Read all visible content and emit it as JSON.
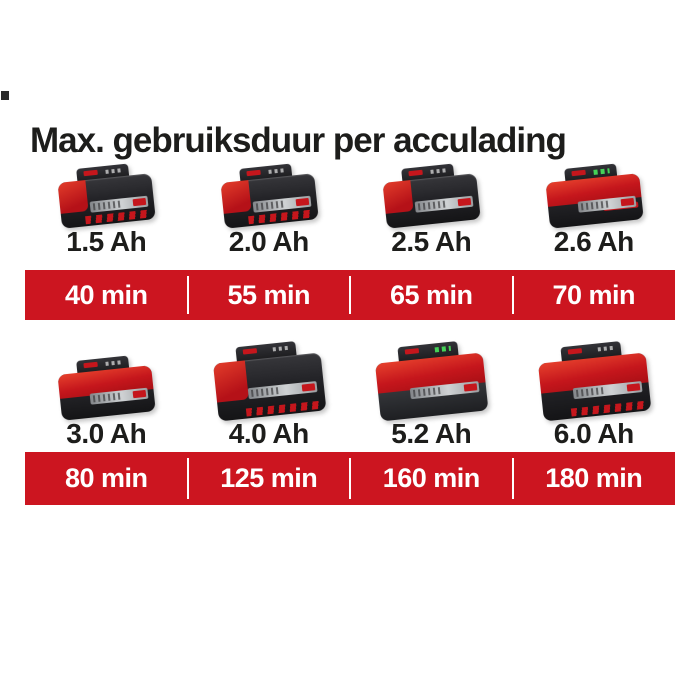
{
  "title": "Max. gebruiksduur per acculading",
  "colors": {
    "background": "#ffffff",
    "banner_red": "#cc1520",
    "banner_text": "#ffffff",
    "text_dark": "#1d1d1b",
    "battery_red": "#c5161c",
    "battery_black": "#232327",
    "battery_gray": "#4a4d52",
    "label_silver": "#cfd2d4",
    "led_green": "#45d257"
  },
  "groups": [
    {
      "items": [
        {
          "capacity": "1.5 Ah",
          "runtime": "40 min",
          "image": "battery-product-photo-small-black"
        },
        {
          "capacity": "2.0 Ah",
          "runtime": "55 min",
          "image": "battery-product-photo-small-black"
        },
        {
          "capacity": "2.5 Ah",
          "runtime": "65 min",
          "image": "battery-product-photo-small-black"
        },
        {
          "capacity": "2.6 Ah",
          "runtime": "70 min",
          "image": "battery-product-photo-small-red-top-led"
        }
      ]
    },
    {
      "items": [
        {
          "capacity": "3.0 Ah",
          "runtime": "80 min",
          "image": "battery-product-photo-small-red-top"
        },
        {
          "capacity": "4.0 Ah",
          "runtime": "125 min",
          "image": "battery-product-photo-large-black"
        },
        {
          "capacity": "5.2 Ah",
          "runtime": "160 min",
          "image": "battery-product-photo-large-gray-red-top-led"
        },
        {
          "capacity": "6.0 Ah",
          "runtime": "180 min",
          "image": "battery-product-photo-large-red-top"
        }
      ]
    }
  ]
}
